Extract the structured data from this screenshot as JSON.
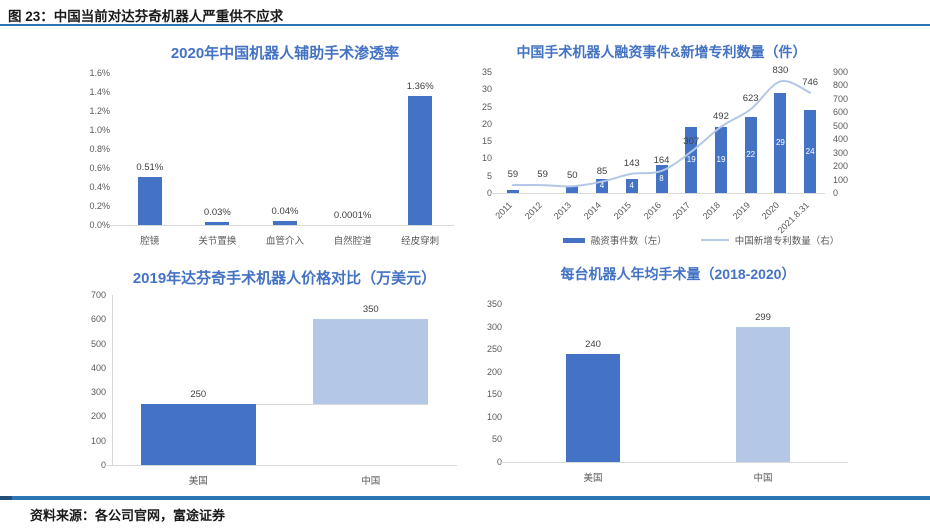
{
  "header": {
    "title": "图 23：中国当前对达芬奇机器人严重供不应求"
  },
  "footer": {
    "source": "资料来源：各公司官网，富途证券"
  },
  "colors": {
    "primary": "#4472C4",
    "secondary": "#B4C7E7",
    "rule": "#2E75B6",
    "rule_cap": "#1F4E79",
    "title_text": "#4472C4",
    "axis_text": "#595959",
    "label_text": "#404040"
  },
  "chart_data": [
    {
      "type": "bar",
      "title": "2020年中国机器人辅助手术渗透率",
      "categories": [
        "腔镜",
        "关节置换",
        "血管介入",
        "自然腔道",
        "经皮穿刺"
      ],
      "y_ticks": [
        "1.6%",
        "1.4%",
        "1.2%",
        "1.0%",
        "0.8%",
        "0.6%",
        "0.4%",
        "0.2%",
        "0.0%"
      ],
      "ylim": [
        0,
        1.6
      ],
      "xlabel": "",
      "ylabel": "",
      "grid": false,
      "series": [
        {
          "name": "渗透率",
          "type": "bar",
          "values": [
            0.51,
            0.03,
            0.04,
            0.0001,
            1.36
          ],
          "labels": [
            "0.51%",
            "0.03%",
            "0.04%",
            "0.0001%",
            "1.36%"
          ],
          "label_pos": "above",
          "color": "#4472C4"
        }
      ]
    },
    {
      "type": "combo",
      "title": "中国手术机器人融资事件&新增专利数量（件）",
      "categories": [
        "2011",
        "2012",
        "2013",
        "2014",
        "2015",
        "2016",
        "2017",
        "2018",
        "2019",
        "2020",
        "2021.8.31"
      ],
      "left_ticks": [
        "35",
        "30",
        "25",
        "20",
        "15",
        "10",
        "5",
        "0"
      ],
      "left_lim": [
        0,
        35
      ],
      "right_ticks": [
        "900",
        "800",
        "700",
        "600",
        "500",
        "400",
        "300",
        "200",
        "100",
        "0"
      ],
      "right_lim": [
        0,
        900
      ],
      "x_rotate": -45,
      "grid": false,
      "legend_position": "bottom",
      "series": [
        {
          "name": "融资事件数（左）",
          "type": "bar",
          "axis": "left",
          "values": [
            1,
            0,
            2,
            4,
            4,
            8,
            19,
            19,
            22,
            29,
            24
          ],
          "labels": [
            null,
            null,
            null,
            "4",
            "4",
            "8",
            "19",
            "19",
            "22",
            "29",
            "24"
          ],
          "label_pos": "inside",
          "color": "#4472C4"
        },
        {
          "name": "中国新增专利数量（右）",
          "type": "line",
          "axis": "right",
          "values": [
            59,
            59,
            50,
            85,
            143,
            164,
            307,
            492,
            623,
            830,
            746
          ],
          "labels": [
            "59",
            "59",
            "50",
            "85",
            "143",
            "164",
            "307",
            "492",
            "623",
            "830",
            "746"
          ],
          "color": "#B4C7E7"
        }
      ],
      "legend": [
        {
          "label": "融资事件数（左）",
          "swatch": "bar",
          "color": "#4472C4"
        },
        {
          "label": "中国新增专利数量（右）",
          "swatch": "line",
          "color": "#B4C7E7"
        }
      ]
    },
    {
      "type": "bar",
      "subtype": "waterfall",
      "title": "2019年达芬奇手术机器人价格对比（万美元）",
      "categories": [
        "美国",
        "中国"
      ],
      "y_ticks": [
        "700",
        "600",
        "500",
        "400",
        "300",
        "200",
        "100",
        "0"
      ],
      "ylim": [
        0,
        700
      ],
      "y_axis_line": true,
      "connector_level": 250,
      "grid": false,
      "series": [
        {
          "name": "价格",
          "type": "bar",
          "values": [
            250,
            350
          ],
          "base": [
            0,
            250
          ],
          "labels": [
            "250",
            "350"
          ],
          "label_pos": "above",
          "colors": [
            "#4472C4",
            "#B4C7E7"
          ]
        }
      ]
    },
    {
      "type": "bar",
      "title": "每台机器人年均手术量（2018-2020）",
      "categories": [
        "美国",
        "中国"
      ],
      "y_ticks": [
        "350",
        "300",
        "250",
        "200",
        "150",
        "100",
        "50",
        "0"
      ],
      "ylim": [
        0,
        350
      ],
      "grid": false,
      "series": [
        {
          "name": "年均手术量",
          "type": "bar",
          "values": [
            240,
            299
          ],
          "labels": [
            "240",
            "299"
          ],
          "label_pos": "above",
          "colors": [
            "#4472C4",
            "#B4C7E7"
          ]
        }
      ]
    }
  ]
}
